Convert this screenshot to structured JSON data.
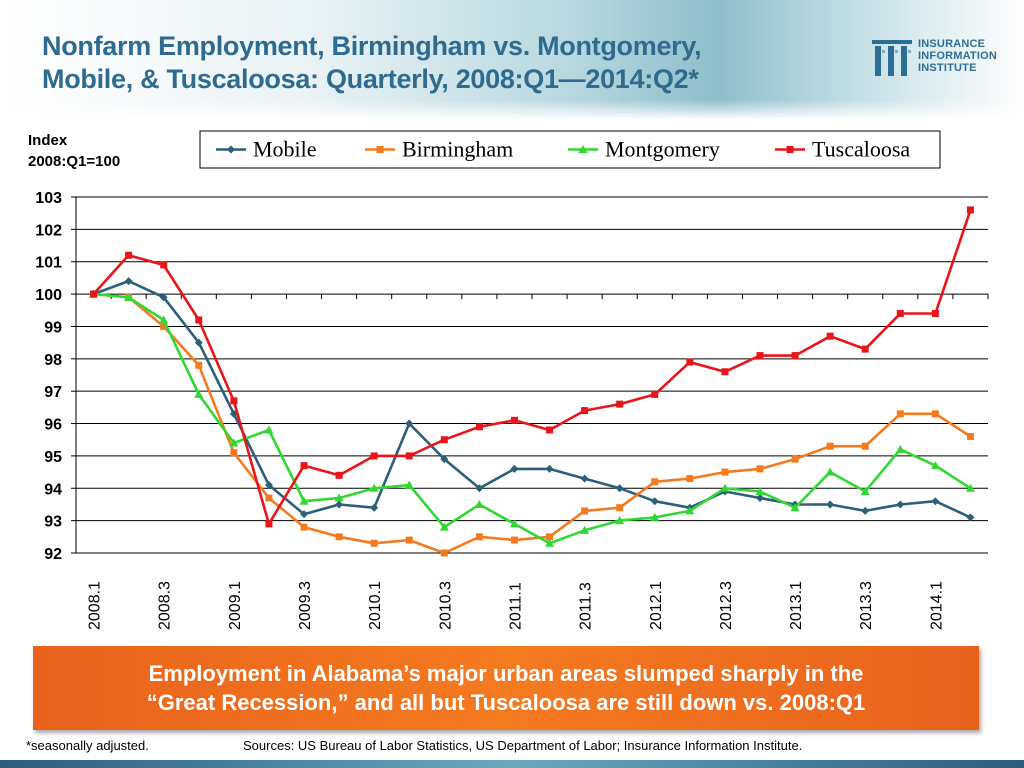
{
  "header": {
    "title_line1": "Nonfarm Employment, Birmingham vs. Montgomery,",
    "title_line2": "Mobile, & Tuscaloosa: Quarterly, 2008:Q1—2014:Q2*"
  },
  "logo": {
    "line1": "INSURANCE",
    "line2": "INFORMATION",
    "line3": "INSTITUTE",
    "color": "#2c6e94"
  },
  "callout": {
    "line1": "Employment in Alabama’s major urban areas slumped sharply in the",
    "line2": "“Great Recession,” and all but Tuscaloosa are still down vs. 2008:Q1",
    "color": "#f47a20"
  },
  "footer": {
    "footnote": "*seasonally adjusted.",
    "sources": "Sources: US Bureau of Labor Statistics, US Department of Labor; Insurance Information Institute."
  },
  "chart_data": {
    "type": "line",
    "title": "",
    "ylabel_line1": "Index",
    "ylabel_line2": "2008:Q1=100",
    "ylim": [
      92,
      103
    ],
    "yticks": [
      92,
      93,
      94,
      95,
      96,
      97,
      98,
      99,
      100,
      101,
      102,
      103
    ],
    "grid": true,
    "legend_position": "top",
    "x_labels": [
      "2008.1",
      "2008.3",
      "2009.1",
      "2009.3",
      "2010.1",
      "2010.3",
      "2011.1",
      "2011.3",
      "2012.1",
      "2012.3",
      "2013.1",
      "2013.3",
      "2014.1"
    ],
    "x": [
      "2008.1",
      "2008.2",
      "2008.3",
      "2008.4",
      "2009.1",
      "2009.2",
      "2009.3",
      "2009.4",
      "2010.1",
      "2010.2",
      "2010.3",
      "2010.4",
      "2011.1",
      "2011.2",
      "2011.3",
      "2011.4",
      "2012.1",
      "2012.2",
      "2012.3",
      "2012.4",
      "2013.1",
      "2013.2",
      "2013.3",
      "2013.4",
      "2014.1",
      "2014.2"
    ],
    "series": [
      {
        "name": "Mobile",
        "color": "#2c5f7a",
        "marker": "diamond",
        "values": [
          100.0,
          100.4,
          99.9,
          98.5,
          96.3,
          94.1,
          93.2,
          93.5,
          93.4,
          96.0,
          94.9,
          94.0,
          94.6,
          94.6,
          94.3,
          94.0,
          93.6,
          93.4,
          93.9,
          93.7,
          93.5,
          93.5,
          93.3,
          93.5,
          93.6,
          93.1
        ]
      },
      {
        "name": "Birmingham",
        "color": "#f47a20",
        "marker": "square",
        "values": [
          100.0,
          99.9,
          99.0,
          97.8,
          95.1,
          93.7,
          92.8,
          92.5,
          92.3,
          92.4,
          92.0,
          92.5,
          92.4,
          92.5,
          93.3,
          93.4,
          94.2,
          94.3,
          94.5,
          94.6,
          94.9,
          95.3,
          95.3,
          96.3,
          96.3,
          95.6
        ]
      },
      {
        "name": "Montgomery",
        "color": "#33d633",
        "marker": "triangle",
        "values": [
          100.0,
          99.9,
          99.2,
          96.9,
          95.4,
          95.8,
          93.6,
          93.7,
          94.0,
          94.1,
          92.8,
          93.5,
          92.9,
          92.3,
          92.7,
          93.0,
          93.1,
          93.3,
          94.0,
          93.9,
          93.4,
          94.5,
          93.9,
          95.2,
          94.7,
          94.0
        ]
      },
      {
        "name": "Tuscaloosa",
        "color": "#e8151b",
        "marker": "square",
        "values": [
          100.0,
          101.2,
          100.9,
          99.2,
          96.7,
          92.9,
          94.7,
          94.4,
          95.0,
          95.0,
          95.5,
          95.9,
          96.1,
          95.8,
          96.4,
          96.6,
          96.9,
          97.9,
          97.6,
          98.1,
          98.1,
          98.7,
          98.3,
          99.4,
          99.4,
          102.6
        ]
      }
    ]
  }
}
